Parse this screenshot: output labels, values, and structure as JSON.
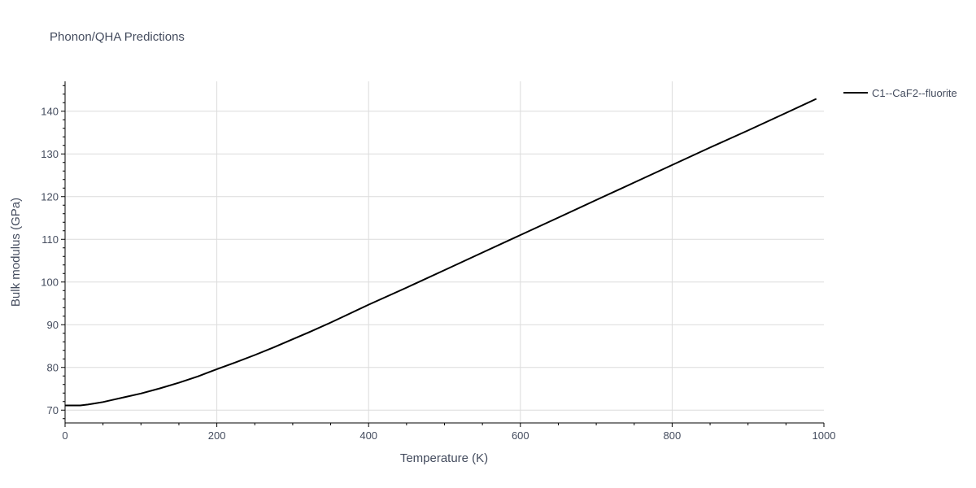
{
  "chart_data": {
    "type": "line",
    "title": "Phonon/QHA Predictions",
    "xlabel": "Temperature (K)",
    "ylabel": "Bulk modulus (GPa)",
    "xlim": [
      0,
      1000
    ],
    "ylim": [
      67,
      147
    ],
    "x_ticks": [
      0,
      200,
      400,
      600,
      800,
      1000
    ],
    "y_ticks": [
      70,
      80,
      90,
      100,
      110,
      120,
      130,
      140
    ],
    "grid": true,
    "legend_position": "top-right",
    "series": [
      {
        "name": "C1--CaF2--fluorite",
        "color": "#000000",
        "x": [
          0,
          10,
          20,
          30,
          40,
          50,
          60,
          80,
          100,
          125,
          150,
          175,
          200,
          225,
          250,
          275,
          300,
          325,
          350,
          375,
          400,
          450,
          500,
          550,
          600,
          650,
          700,
          750,
          800,
          850,
          900,
          950,
          990
        ],
        "y": [
          71.1,
          71.1,
          71.1,
          71.3,
          71.6,
          71.9,
          72.3,
          73.1,
          73.9,
          75.1,
          76.4,
          77.9,
          79.6,
          81.2,
          82.9,
          84.7,
          86.6,
          88.5,
          90.5,
          92.6,
          94.7,
          98.7,
          102.8,
          106.9,
          111.0,
          115.1,
          119.2,
          123.3,
          127.4,
          131.5,
          135.5,
          139.6,
          142.9
        ]
      }
    ]
  }
}
